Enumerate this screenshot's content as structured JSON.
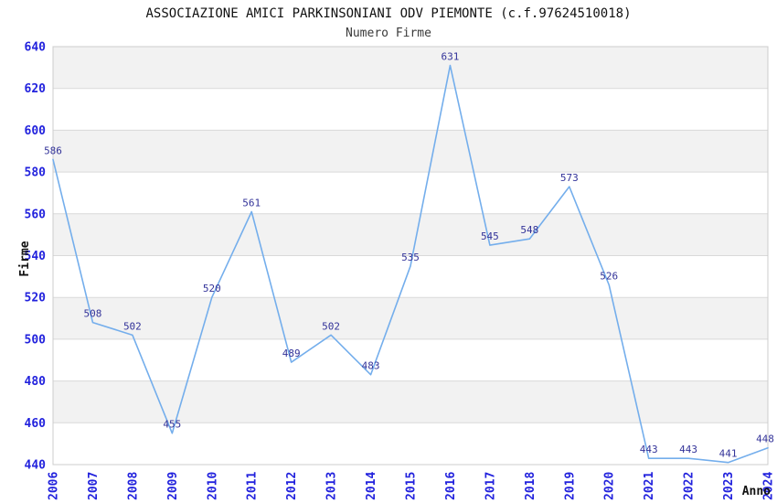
{
  "chart_data": {
    "type": "line",
    "title": "ASSOCIAZIONE AMICI PARKINSONIANI ODV PIEMONTE (c.f.97624510018)",
    "subtitle": "Numero Firme",
    "xlabel": "Anno",
    "ylabel": "Firme",
    "x": [
      2006,
      2007,
      2008,
      2009,
      2010,
      2011,
      2012,
      2013,
      2014,
      2015,
      2016,
      2017,
      2018,
      2019,
      2020,
      2021,
      2022,
      2023,
      2024
    ],
    "values": [
      586,
      508,
      502,
      455,
      520,
      561,
      489,
      502,
      483,
      535,
      631,
      545,
      548,
      573,
      526,
      443,
      443,
      441,
      448
    ],
    "ylim": [
      440,
      640
    ],
    "ytick_step": 20,
    "grid": "horizontal-bands",
    "legend": "none",
    "colors": {
      "line": "#74aeec",
      "tick_label": "#2222dd",
      "point_label": "#333399",
      "band": "#f2f2f2",
      "grid": "#d9d9d9",
      "border": "#cccccc",
      "title": "#111111",
      "subtitle": "#3a3a3a"
    }
  }
}
